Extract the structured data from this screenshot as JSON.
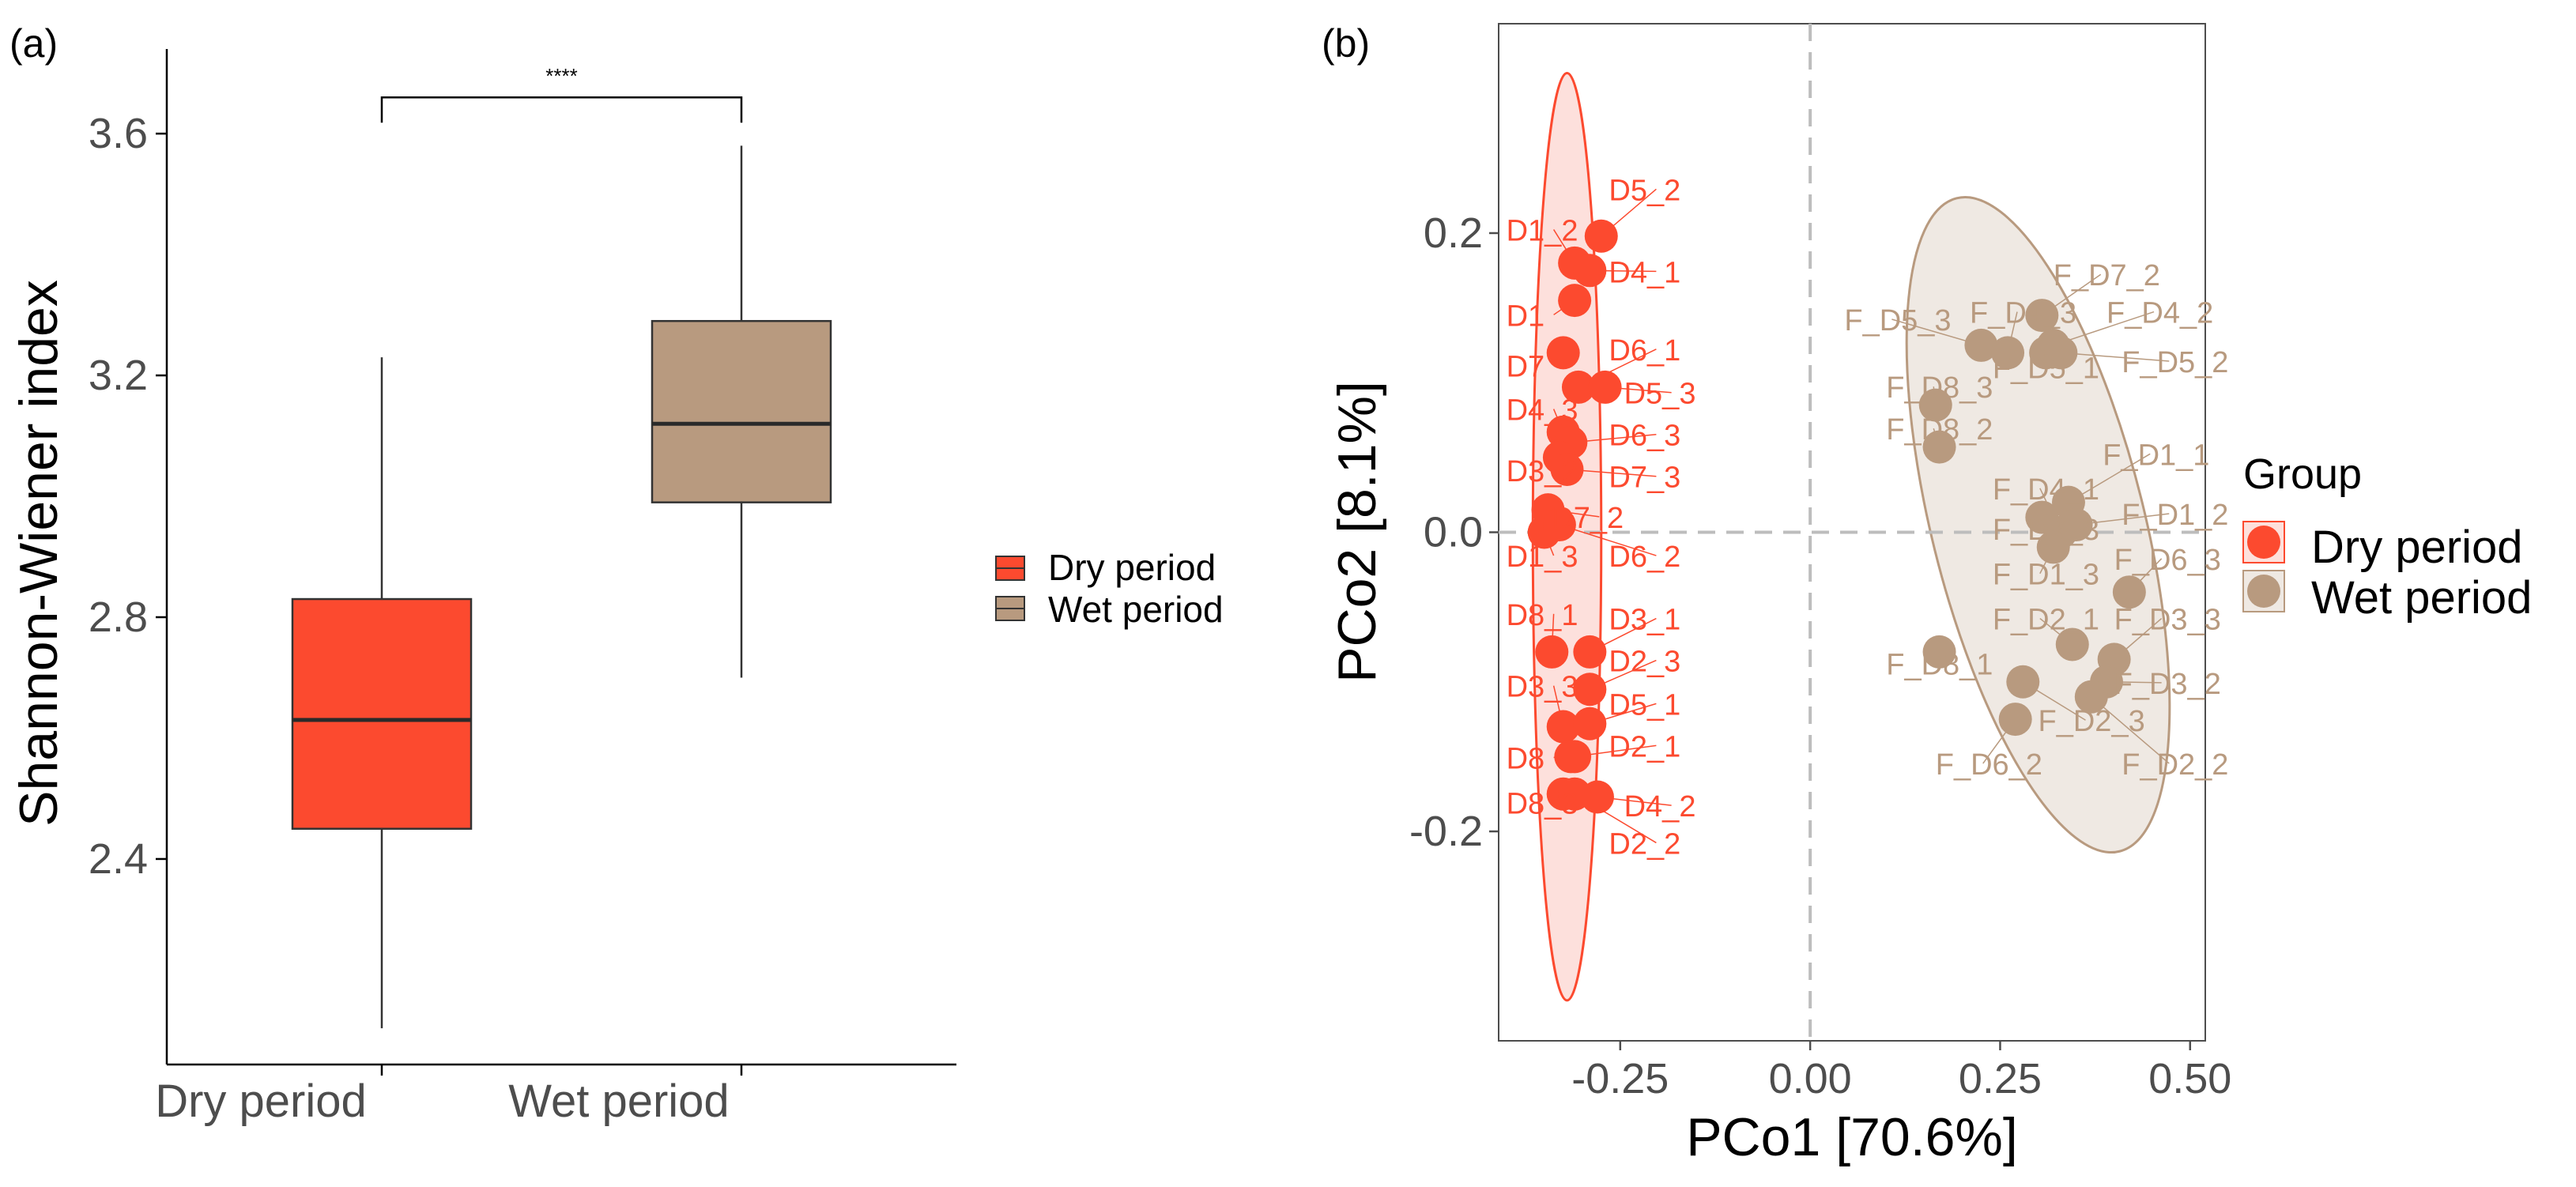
{
  "colors": {
    "dry": "#fc4a2f",
    "wet": "#b89a7f",
    "axis": "#000000",
    "tick_text": "#4d4d4d",
    "ref_line": "#bdbdbd"
  },
  "chart_data": [
    {
      "panel_label": "(a)",
      "type": "box",
      "xlabel": "",
      "ylabel": "Shannon-Wiener index",
      "ylim": [
        2.06,
        3.74
      ],
      "yticks": [
        2.4,
        2.8,
        3.2,
        3.6
      ],
      "ytick_labels": [
        "2.4",
        "2.8",
        "3.2",
        "3.6"
      ],
      "categories": [
        "Dry period",
        "Wet period"
      ],
      "boxes": [
        {
          "name": "Dry period",
          "whisker_low": 2.12,
          "q1": 2.45,
          "median": 2.63,
          "q3": 2.83,
          "whisker_high": 3.23
        },
        {
          "name": "Wet period",
          "whisker_low": 2.7,
          "q1": 2.99,
          "median": 3.12,
          "q3": 3.29,
          "whisker_high": 3.58
        }
      ],
      "significance": {
        "label": "****",
        "y": 3.66,
        "between": [
          "Dry period",
          "Wet period"
        ]
      },
      "legend": {
        "entries": [
          "Dry period",
          "Wet period"
        ],
        "position": "right"
      }
    },
    {
      "panel_label": "(b)",
      "type": "scatter",
      "xlabel": "PCo1 [70.6%]",
      "ylabel": "PCo2 [8.1%]",
      "xlim": [
        -0.41,
        0.52
      ],
      "ylim": [
        -0.34,
        0.34
      ],
      "xticks": [
        -0.25,
        0.0,
        0.25,
        0.5
      ],
      "xtick_labels": [
        "-0.25",
        "0.00",
        "0.25",
        "0.50"
      ],
      "yticks": [
        -0.2,
        0.0,
        0.2
      ],
      "ytick_labels": [
        "-0.2",
        "0.0",
        "0.2"
      ],
      "ellipses": [
        {
          "group": "Dry period",
          "cx": -0.32,
          "cy": -0.003,
          "rx": 0.045,
          "ry": 0.31
        },
        {
          "group": "Wet period",
          "cx": 0.3,
          "cy": 0.005,
          "rx": 0.14,
          "ry": 0.225,
          "rotate": -14
        }
      ],
      "legend": {
        "title": "Group",
        "entries": [
          "Dry period",
          "Wet period"
        ],
        "position": "right"
      },
      "series": [
        {
          "name": "Dry period",
          "points": [
            {
              "label": "D5_2",
              "x": -0.275,
              "y": 0.198,
              "lx": -0.265,
              "ly": 0.222
            },
            {
              "label": "D1_2",
              "x": -0.31,
              "y": 0.18,
              "lx": -0.4,
              "ly": 0.195
            },
            {
              "label": "D4_1",
              "x": -0.29,
              "y": 0.175,
              "lx": -0.265,
              "ly": 0.167
            },
            {
              "label": "D1",
              "x": -0.31,
              "y": 0.155,
              "lx": -0.4,
              "ly": 0.138
            },
            {
              "label": "D7",
              "x": -0.325,
              "y": 0.12,
              "lx": -0.4,
              "ly": 0.104
            },
            {
              "label": "D6_1",
              "x": -0.305,
              "y": 0.097,
              "lx": -0.265,
              "ly": 0.115
            },
            {
              "label": "D5_3",
              "x": -0.27,
              "y": 0.097,
              "lx": -0.245,
              "ly": 0.086
            },
            {
              "label": "D4_3",
              "x": -0.325,
              "y": 0.067,
              "lx": -0.4,
              "ly": 0.075
            },
            {
              "label": "D6_3",
              "x": -0.315,
              "y": 0.06,
              "lx": -0.265,
              "ly": 0.058
            },
            {
              "label": "D3_2",
              "x": -0.33,
              "y": 0.05,
              "lx": -0.4,
              "ly": 0.034
            },
            {
              "label": "D7_3",
              "x": -0.32,
              "y": 0.042,
              "lx": -0.265,
              "ly": 0.03
            },
            {
              "label": "D7_2",
              "x": -0.345,
              "y": 0.015,
              "lx": -0.34,
              "ly": 0.003
            },
            {
              "label": "D1_3",
              "x": -0.35,
              "y": 0.0,
              "lx": -0.4,
              "ly": -0.023
            },
            {
              "label": "D6_2",
              "x": -0.33,
              "y": 0.005,
              "lx": -0.265,
              "ly": -0.023
            },
            {
              "label": "D8_1",
              "x": -0.34,
              "y": -0.08,
              "lx": -0.4,
              "ly": -0.062
            },
            {
              "label": "D3_1",
              "x": -0.29,
              "y": -0.08,
              "lx": -0.265,
              "ly": -0.065
            },
            {
              "label": "D2_3",
              "x": -0.29,
              "y": -0.105,
              "lx": -0.265,
              "ly": -0.093
            },
            {
              "label": "D3_3",
              "x": -0.325,
              "y": -0.13,
              "lx": -0.4,
              "ly": -0.11
            },
            {
              "label": "D5_1",
              "x": -0.29,
              "y": -0.128,
              "lx": -0.265,
              "ly": -0.122
            },
            {
              "label": "D8",
              "x": -0.315,
              "y": -0.15,
              "lx": -0.4,
              "ly": -0.158
            },
            {
              "label": "D2_1",
              "x": -0.31,
              "y": -0.15,
              "lx": -0.265,
              "ly": -0.15
            },
            {
              "label": "D8_3",
              "x": -0.325,
              "y": -0.175,
              "lx": -0.4,
              "ly": -0.188
            },
            {
              "label": "D4_2",
              "x": -0.28,
              "y": -0.177,
              "lx": -0.245,
              "ly": -0.19
            },
            {
              "label": "D2_2",
              "x": -0.31,
              "y": -0.175,
              "lx": -0.265,
              "ly": -0.215
            }
          ]
        },
        {
          "name": "Wet period",
          "points": [
            {
              "label": "F_D7_2",
              "x": 0.305,
              "y": 0.145,
              "lx": 0.32,
              "ly": 0.165
            },
            {
              "label": "F_D5_3",
              "x": 0.225,
              "y": 0.125,
              "lx": 0.045,
              "ly": 0.135
            },
            {
              "label": "F_D4_3",
              "x": 0.26,
              "y": 0.12,
              "lx": 0.21,
              "ly": 0.14
            },
            {
              "label": "F_D4_2",
              "x": 0.32,
              "y": 0.125,
              "lx": 0.39,
              "ly": 0.14
            },
            {
              "label": "F_D5_1",
              "x": 0.31,
              "y": 0.12,
              "lx": 0.24,
              "ly": 0.103
            },
            {
              "label": "F_D5_2",
              "x": 0.33,
              "y": 0.12,
              "lx": 0.41,
              "ly": 0.107
            },
            {
              "label": "F_D8_3",
              "x": 0.165,
              "y": 0.085,
              "lx": 0.1,
              "ly": 0.09
            },
            {
              "label": "F_D8_2",
              "x": 0.17,
              "y": 0.057,
              "lx": 0.1,
              "ly": 0.062
            },
            {
              "label": "F_D1_1",
              "x": 0.34,
              "y": 0.02,
              "lx": 0.385,
              "ly": 0.045
            },
            {
              "label": "F_D4_1",
              "x": 0.33,
              "y": 0.0,
              "lx": 0.24,
              "ly": 0.022
            },
            {
              "label": "F_D7_3",
              "x": 0.305,
              "y": 0.01,
              "lx": 0.24,
              "ly": -0.005
            },
            {
              "label": "F_D1_2",
              "x": 0.35,
              "y": 0.005,
              "lx": 0.41,
              "ly": 0.005
            },
            {
              "label": "F_D1_3",
              "x": 0.32,
              "y": -0.01,
              "lx": 0.24,
              "ly": -0.035
            },
            {
              "label": "F_D6_3",
              "x": 0.42,
              "y": -0.04,
              "lx": 0.4,
              "ly": -0.025
            },
            {
              "label": "F_D2_1",
              "x": 0.345,
              "y": -0.075,
              "lx": 0.24,
              "ly": -0.065
            },
            {
              "label": "F_D3_3",
              "x": 0.4,
              "y": -0.085,
              "lx": 0.4,
              "ly": -0.065
            },
            {
              "label": "F_D8_1",
              "x": 0.17,
              "y": -0.08,
              "lx": 0.1,
              "ly": -0.095
            },
            {
              "label": "F_D3_2",
              "x": 0.39,
              "y": -0.1,
              "lx": 0.4,
              "ly": -0.108
            },
            {
              "label": "F_D2_3",
              "x": 0.28,
              "y": -0.1,
              "lx": 0.3,
              "ly": -0.133
            },
            {
              "label": "F_D6_2",
              "x": 0.27,
              "y": -0.125,
              "lx": 0.165,
              "ly": -0.162
            },
            {
              "label": "F_D2_2",
              "x": 0.37,
              "y": -0.11,
              "lx": 0.41,
              "ly": -0.162
            }
          ]
        }
      ]
    }
  ]
}
